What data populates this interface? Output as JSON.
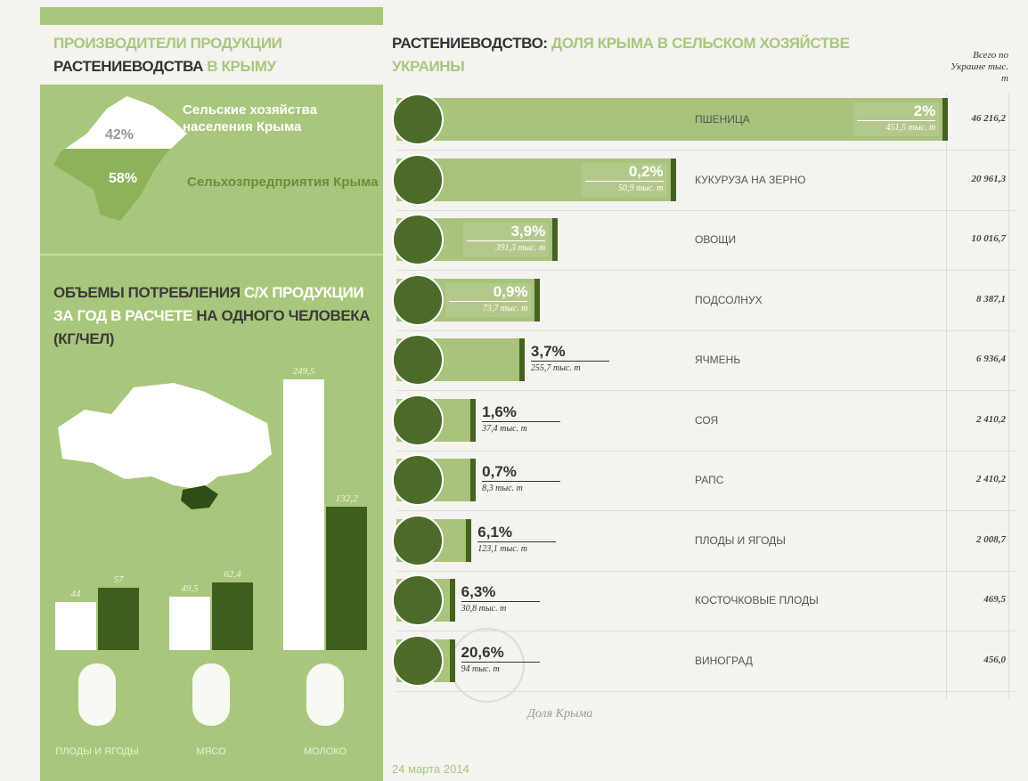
{
  "header": {
    "title_parts": [
      "ПРОИЗВОДИТЕЛИ ПРОДУКЦИИ",
      "РАСТЕНИЕВОДСТВА",
      "В КРЫМУ"
    ]
  },
  "chart_data": [
    {
      "type": "pie",
      "categories": [
        "Сельские хозяйства населения Крыма",
        "Сельхозпредприятия Крыма"
      ],
      "values": [
        42,
        58
      ],
      "value_labels": [
        "42%",
        "58%"
      ],
      "colors": [
        "#ffffff",
        "#8db35a"
      ]
    },
    {
      "type": "bar",
      "title_parts": [
        "ОБЪЕМЫ ПОТРЕБЛЕНИЯ",
        "С/Х ПРОДУКЦИИ ЗА ГОД В РАСЧЕТЕ",
        "НА ОДНОГО ЧЕЛОВЕКА (КГ/ЧЕЛ)"
      ],
      "categories": [
        "ПЛОДЫ И ЯГОДЫ",
        "МЯСО",
        "МОЛОКО"
      ],
      "series": [
        {
          "color": "#ffffff",
          "values": [
            44,
            49.5,
            249.5
          ],
          "value_labels": [
            "44",
            "49,5",
            "249,5"
          ]
        },
        {
          "color": "#3e5e1e",
          "values": [
            57,
            62.4,
            132.2
          ],
          "value_labels": [
            "57",
            "62,4",
            "132,2"
          ]
        }
      ]
    },
    {
      "type": "hbar",
      "title_parts": [
        "РАСТЕНИЕВОДСТВО:",
        "ДОЛЯ КРЫМА В СЕЛЬСКОМ ХОЗЯЙСТВЕ УКРАИНЫ"
      ],
      "categories": [
        "ПШЕНИЦА",
        "КУКУРУЗА НА ЗЕРНО",
        "ОВОЩИ",
        "ПОДСОЛНУХ",
        "ЯЧМЕНЬ",
        "СОЯ",
        "РАПС",
        "ПЛОДЫ И ЯГОДЫ",
        "КОСТОЧКОВЫЕ ПЛОДЫ",
        "ВИНОГРАД"
      ],
      "series": [
        {
          "name": "Всего по Украине тыс. т",
          "color": "#a9c27c",
          "values": [
            46216.2,
            20961.3,
            10016.7,
            8387.1,
            6936.4,
            2410.2,
            2410.2,
            2008.7,
            469.5,
            456.0
          ],
          "value_labels": [
            "46 216,2",
            "20 961,3",
            "10 016,7",
            "8 387,1",
            "6 936,4",
            "2 410,2",
            "2 410,2",
            "2 008,7",
            "469,5",
            "456,0"
          ]
        },
        {
          "name": "Доля Крыма",
          "values": [
            2,
            0.2,
            3.9,
            0.9,
            3.7,
            1.6,
            0.7,
            6.1,
            6.3,
            20.6
          ],
          "value_labels": [
            "2%",
            "0,2%",
            "3,9%",
            "0,9%",
            "3,7%",
            "1,6%",
            "0,7%",
            "6,1%",
            "6,3%",
            "20,6%"
          ]
        },
        {
          "values": [
            451.5,
            50.9,
            391.3,
            73.7,
            255.7,
            37.4,
            8.3,
            123.1,
            30.8,
            94
          ],
          "value_labels": [
            "451,5 тыс. т",
            "50,9 тыс. т",
            "391,3 тыс. т",
            "73,7 тыс. т",
            "255,7 тыс. т",
            "37,4 тыс. т",
            "8,3 тыс. т",
            "123,1 тыс. т",
            "30,8 тыс. т",
            "94 тыс. т"
          ]
        }
      ]
    }
  ],
  "footer": {
    "date": "24 марта 2014"
  }
}
